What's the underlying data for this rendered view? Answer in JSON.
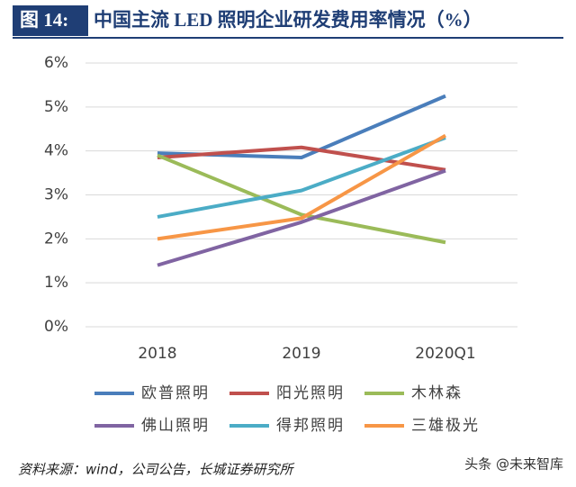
{
  "figure_label": "图 14:",
  "chart_data": {
    "type": "line",
    "title": "中国主流 LED 照明企业研发费用率情况（%）",
    "categories": [
      "2018",
      "2019",
      "2020Q1"
    ],
    "series": [
      {
        "name": "欧普照明",
        "color": "#4a7ebb",
        "values": [
          3.95,
          3.85,
          5.25
        ]
      },
      {
        "name": "阳光照明",
        "color": "#c0504d",
        "values": [
          3.85,
          4.08,
          3.57
        ]
      },
      {
        "name": "木林森",
        "color": "#9bbb59",
        "values": [
          3.9,
          2.55,
          1.92
        ]
      },
      {
        "name": "佛山照明",
        "color": "#8064a2",
        "values": [
          1.4,
          2.38,
          3.55
        ]
      },
      {
        "name": "得邦照明",
        "color": "#4bacc6",
        "values": [
          2.5,
          3.1,
          4.3
        ]
      },
      {
        "name": "三雄极光",
        "color": "#f79646",
        "values": [
          2.0,
          2.47,
          4.35
        ]
      }
    ],
    "ylim": [
      0,
      6
    ],
    "yticks": [
      {
        "value": 0,
        "label": "0%"
      },
      {
        "value": 1,
        "label": "1%"
      },
      {
        "value": 2,
        "label": "2%"
      },
      {
        "value": 3,
        "label": "3%"
      },
      {
        "value": 4,
        "label": "4%"
      },
      {
        "value": 5,
        "label": "5%"
      },
      {
        "value": 6,
        "label": "6%"
      }
    ],
    "grid": true
  },
  "source": "资料来源：wind，公司公告，长城证券研究所",
  "watermark": "头条 @未来智库"
}
